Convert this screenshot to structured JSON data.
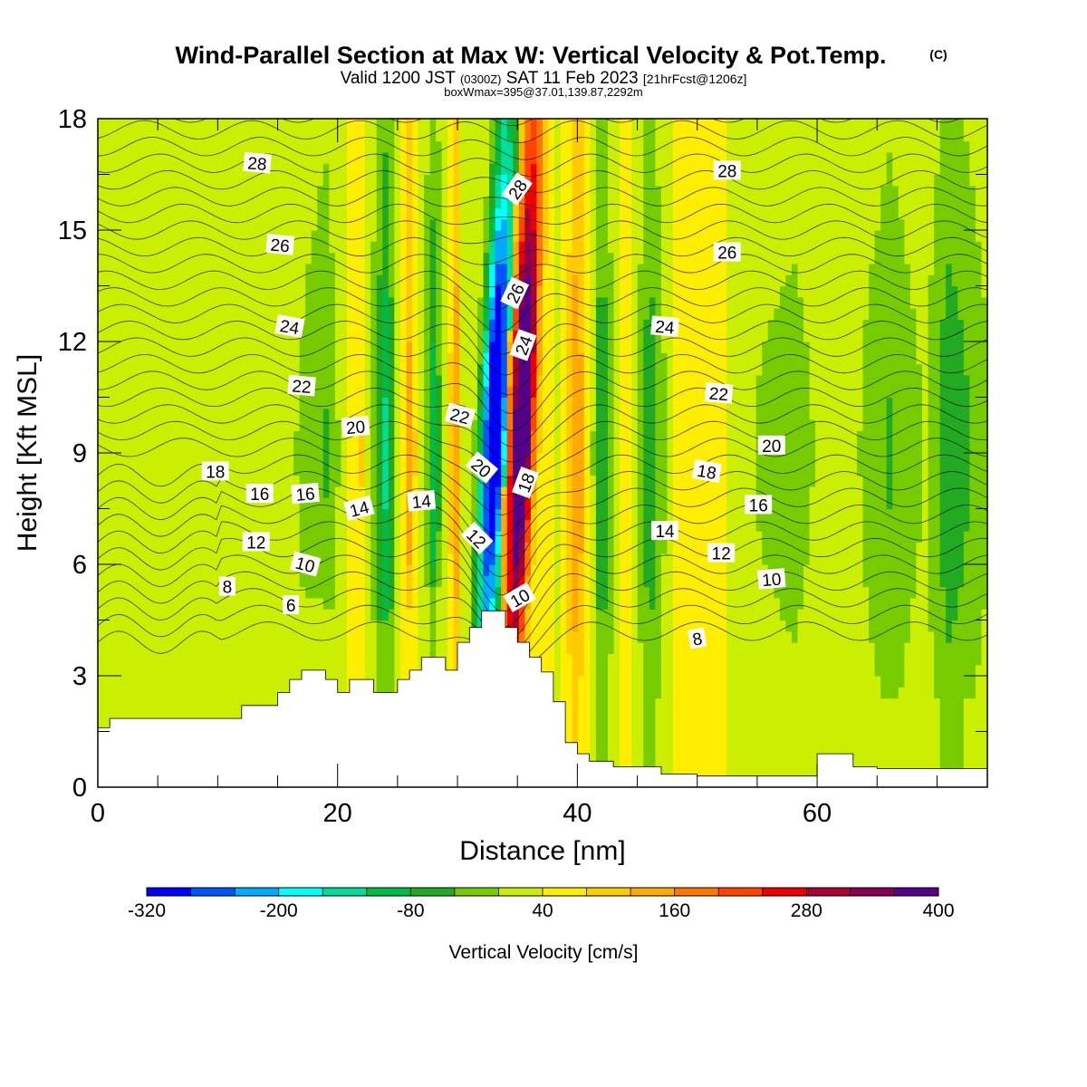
{
  "chart_data": {
    "type": "heatmap",
    "title": "Wind-Parallel Section at Max W: Vertical Velocity & Pot.Temp.",
    "title_mark": "(C)",
    "subtitle_parts": [
      "Valid 1200 JST",
      "(0300Z)",
      "SAT 11 Feb 2023",
      "[21hrFcst@1206z]"
    ],
    "subtitle2": "boxWmax=395@37.01,139.87,2292m",
    "xlabel": "Distance [nm]",
    "ylabel": "Height [Kft MSL]",
    "xlim": [
      0,
      74.2
    ],
    "ylim": [
      0,
      18
    ],
    "x_ticks": [
      "0",
      "20",
      "40",
      "60"
    ],
    "y_ticks": [
      "0",
      "3",
      "6",
      "9",
      "12",
      "15",
      "18"
    ],
    "colorbar": {
      "label": "Vertical Velocity [cm/s]",
      "ticks": [
        "-320",
        "-200",
        "-80",
        "40",
        "160",
        "280",
        "400"
      ],
      "colors": [
        "#0000ff",
        "#0055ff",
        "#00aaff",
        "#00ffff",
        "#00dd99",
        "#00bb44",
        "#22aa22",
        "#77cc00",
        "#ccee00",
        "#ffee00",
        "#ffcc00",
        "#ffaa00",
        "#ff7700",
        "#ff4400",
        "#ee0000",
        "#aa0033",
        "#880055",
        "#550088"
      ]
    },
    "terrain_kft": [
      [
        0,
        1.6
      ],
      [
        1,
        1.6
      ],
      [
        1,
        1.85
      ],
      [
        12,
        1.85
      ],
      [
        12,
        2.2
      ],
      [
        15,
        2.2
      ],
      [
        15,
        2.55
      ],
      [
        16,
        2.55
      ],
      [
        16,
        2.9
      ],
      [
        17,
        2.9
      ],
      [
        17,
        3.15
      ],
      [
        19,
        3.15
      ],
      [
        19,
        2.9
      ],
      [
        20,
        2.9
      ],
      [
        20,
        2.55
      ],
      [
        21,
        2.55
      ],
      [
        21,
        2.9
      ],
      [
        23,
        2.9
      ],
      [
        23,
        2.55
      ],
      [
        25,
        2.55
      ],
      [
        25,
        2.9
      ],
      [
        26,
        2.9
      ],
      [
        26,
        3.15
      ],
      [
        27,
        3.15
      ],
      [
        27,
        3.5
      ],
      [
        29,
        3.5
      ],
      [
        29,
        3.15
      ],
      [
        30,
        3.15
      ],
      [
        30,
        3.9
      ],
      [
        31,
        3.9
      ],
      [
        31,
        4.3
      ],
      [
        32,
        4.3
      ],
      [
        32,
        4.75
      ],
      [
        34,
        4.75
      ],
      [
        34,
        4.3
      ],
      [
        35,
        4.3
      ],
      [
        35,
        3.9
      ],
      [
        36,
        3.9
      ],
      [
        36,
        3.5
      ],
      [
        37,
        3.5
      ],
      [
        37,
        3.1
      ],
      [
        38,
        3.1
      ],
      [
        38,
        2.3
      ],
      [
        39,
        2.3
      ],
      [
        39,
        1.2
      ],
      [
        40,
        1.2
      ],
      [
        40,
        0.9
      ],
      [
        41,
        0.9
      ],
      [
        41,
        0.7
      ],
      [
        43,
        0.7
      ],
      [
        43,
        0.55
      ],
      [
        47,
        0.55
      ],
      [
        47,
        0.35
      ],
      [
        50,
        0.35
      ],
      [
        50,
        0.3
      ],
      [
        60,
        0.3
      ],
      [
        60,
        0.9
      ],
      [
        63,
        0.9
      ],
      [
        63,
        0.55
      ],
      [
        65,
        0.55
      ],
      [
        65,
        0.5
      ],
      [
        74.2,
        0.5
      ]
    ],
    "w_base": [
      [
        0,
        40
      ],
      [
        3,
        25
      ],
      [
        8,
        40
      ],
      [
        15,
        30
      ],
      [
        19,
        -30
      ],
      [
        22,
        75
      ],
      [
        24,
        -100
      ],
      [
        26,
        120
      ],
      [
        28,
        -80
      ],
      [
        30,
        140
      ],
      [
        32,
        -200
      ],
      [
        33.5,
        -320
      ],
      [
        35,
        320
      ],
      [
        36.5,
        200
      ],
      [
        38.5,
        20
      ],
      [
        40,
        150
      ],
      [
        42,
        -70
      ],
      [
        44,
        80
      ],
      [
        46,
        -60
      ],
      [
        48,
        40
      ],
      [
        51,
        60
      ],
      [
        54,
        10
      ],
      [
        58,
        -10
      ],
      [
        62,
        30
      ],
      [
        66,
        -30
      ],
      [
        69,
        10
      ],
      [
        71,
        -60
      ],
      [
        74.2,
        0
      ]
    ],
    "theta_levels": [
      6,
      8,
      10,
      12,
      14,
      16,
      18,
      20,
      22,
      24,
      26,
      28
    ],
    "contour_labels": [
      {
        "text": "28",
        "x": 13.3,
        "y": 16.8,
        "angle": 5
      },
      {
        "text": "26",
        "x": 15.2,
        "y": 14.6,
        "angle": 5
      },
      {
        "text": "24",
        "x": 16,
        "y": 12.4,
        "angle": 10
      },
      {
        "text": "22",
        "x": 17,
        "y": 10.8,
        "angle": 5
      },
      {
        "text": "20",
        "x": 21.5,
        "y": 9.7,
        "angle": -5
      },
      {
        "text": "18",
        "x": 9.8,
        "y": 8.5,
        "angle": 0
      },
      {
        "text": "16",
        "x": 13.5,
        "y": 7.9,
        "angle": 0
      },
      {
        "text": "16",
        "x": 17.3,
        "y": 7.9,
        "angle": -5
      },
      {
        "text": "14",
        "x": 21.8,
        "y": 7.5,
        "angle": -15
      },
      {
        "text": "14",
        "x": 27,
        "y": 7.7,
        "angle": -5
      },
      {
        "text": "12",
        "x": 13.2,
        "y": 6.6,
        "angle": 0
      },
      {
        "text": "10",
        "x": 17.3,
        "y": 6.0,
        "angle": 15
      },
      {
        "text": "8",
        "x": 10.8,
        "y": 5.4,
        "angle": 0
      },
      {
        "text": "6",
        "x": 16.1,
        "y": 4.9,
        "angle": 0
      },
      {
        "text": "22",
        "x": 30.2,
        "y": 10.0,
        "angle": 15
      },
      {
        "text": "20",
        "x": 32,
        "y": 8.6,
        "angle": 40
      },
      {
        "text": "12",
        "x": 31.6,
        "y": 6.7,
        "angle": 45
      },
      {
        "text": "28",
        "x": 35,
        "y": 16.1,
        "angle": -55
      },
      {
        "text": "26",
        "x": 34.8,
        "y": 13.3,
        "angle": -65
      },
      {
        "text": "24",
        "x": 35.5,
        "y": 11.9,
        "angle": -70
      },
      {
        "text": "18",
        "x": 35.7,
        "y": 8.2,
        "angle": -70
      },
      {
        "text": "10",
        "x": 35.2,
        "y": 5.1,
        "angle": -30
      },
      {
        "text": "24",
        "x": 47.3,
        "y": 12.4,
        "angle": 5
      },
      {
        "text": "22",
        "x": 51.8,
        "y": 10.6,
        "angle": 5
      },
      {
        "text": "20",
        "x": 56.2,
        "y": 9.2,
        "angle": 0
      },
      {
        "text": "18",
        "x": 50.8,
        "y": 8.5,
        "angle": 10
      },
      {
        "text": "16",
        "x": 55.1,
        "y": 7.6,
        "angle": 0
      },
      {
        "text": "14",
        "x": 47.3,
        "y": 6.9,
        "angle": 0
      },
      {
        "text": "12",
        "x": 52,
        "y": 6.3,
        "angle": 0
      },
      {
        "text": "10",
        "x": 56.2,
        "y": 5.6,
        "angle": -5
      },
      {
        "text": "8",
        "x": 50,
        "y": 4.0,
        "angle": -10
      },
      {
        "text": "28",
        "x": 52.5,
        "y": 16.6,
        "angle": 0
      },
      {
        "text": "26",
        "x": 52.5,
        "y": 14.4,
        "angle": 0
      }
    ]
  }
}
